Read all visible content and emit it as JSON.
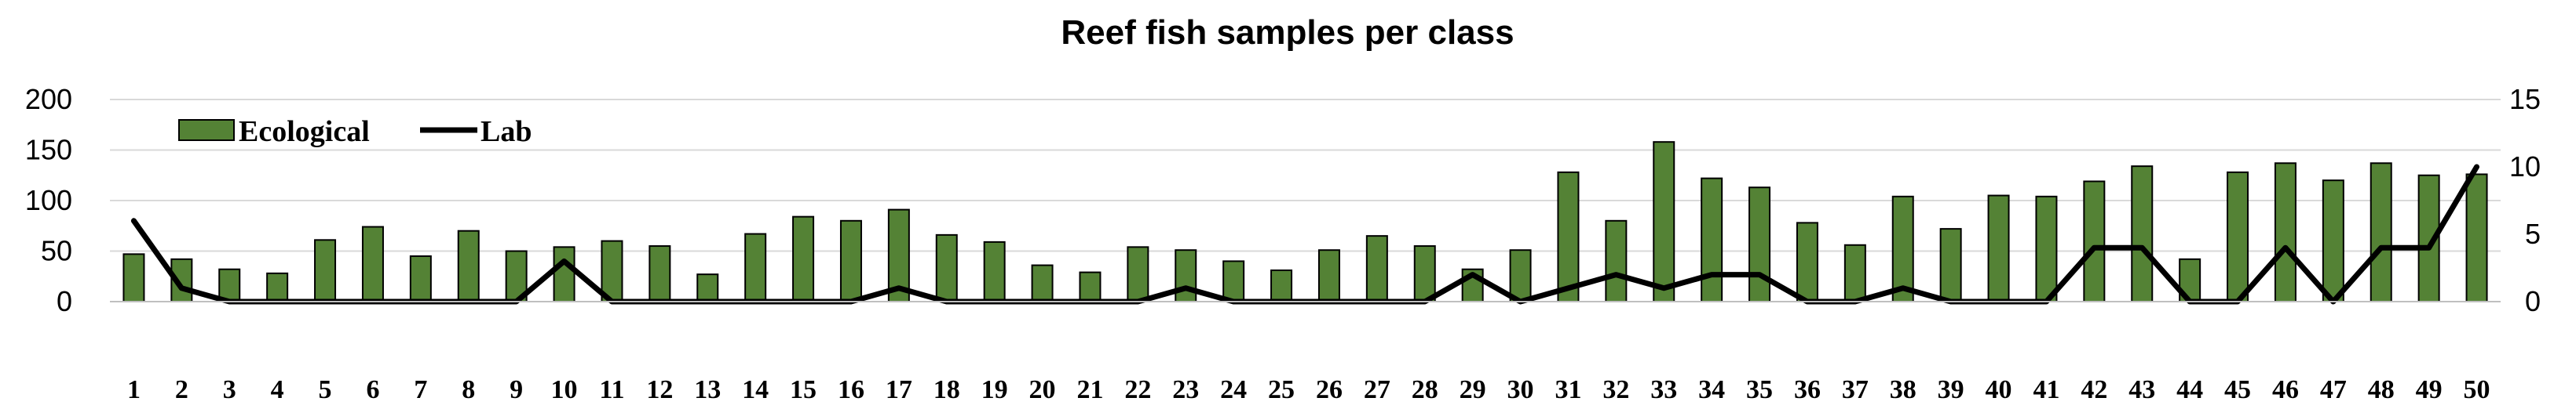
{
  "chart_data": {
    "type": "bar",
    "title": "Reef fish samples per class",
    "categories": [
      "1",
      "2",
      "3",
      "4",
      "5",
      "6",
      "7",
      "8",
      "9",
      "10",
      "11",
      "12",
      "13",
      "14",
      "15",
      "16",
      "17",
      "18",
      "19",
      "20",
      "21",
      "22",
      "23",
      "24",
      "25",
      "26",
      "27",
      "28",
      "29",
      "30",
      "31",
      "32",
      "33",
      "34",
      "35",
      "36",
      "37",
      "38",
      "39",
      "40",
      "41",
      "42",
      "43",
      "44",
      "45",
      "46",
      "47",
      "48",
      "49",
      "50"
    ],
    "series": [
      {
        "name": "Ecological",
        "type": "bar",
        "axis": "left",
        "color": "#548235",
        "values": [
          47,
          42,
          32,
          28,
          61,
          74,
          45,
          70,
          50,
          54,
          60,
          55,
          27,
          67,
          84,
          80,
          91,
          66,
          59,
          36,
          29,
          54,
          51,
          40,
          31,
          51,
          65,
          55,
          32,
          51,
          128,
          80,
          158,
          122,
          113,
          78,
          56,
          104,
          72,
          105,
          104,
          119,
          134,
          42,
          128,
          137,
          120,
          137,
          125,
          126
        ]
      },
      {
        "name": "Lab",
        "type": "line",
        "axis": "right",
        "color": "#000000",
        "values": [
          6,
          1,
          0,
          0,
          0,
          0,
          0,
          0,
          0,
          3,
          0,
          0,
          0,
          0,
          0,
          0,
          1,
          0,
          0,
          0,
          0,
          0,
          1,
          0,
          0,
          0,
          0,
          0,
          2,
          0,
          1,
          2,
          1,
          2,
          2,
          0,
          0,
          1,
          0,
          0,
          0,
          4,
          4,
          0,
          0,
          4,
          0,
          4,
          4,
          10
        ]
      }
    ],
    "y_left": {
      "ylim": [
        0,
        200
      ],
      "ticks": [
        "0",
        "50",
        "100",
        "150",
        "200"
      ]
    },
    "y_right": {
      "ylim": [
        0,
        15
      ],
      "ticks": [
        "0",
        "5",
        "10",
        "15"
      ]
    },
    "grid": true,
    "legend": {
      "position": "top-left",
      "entries": [
        "Ecological",
        "Lab"
      ]
    }
  }
}
